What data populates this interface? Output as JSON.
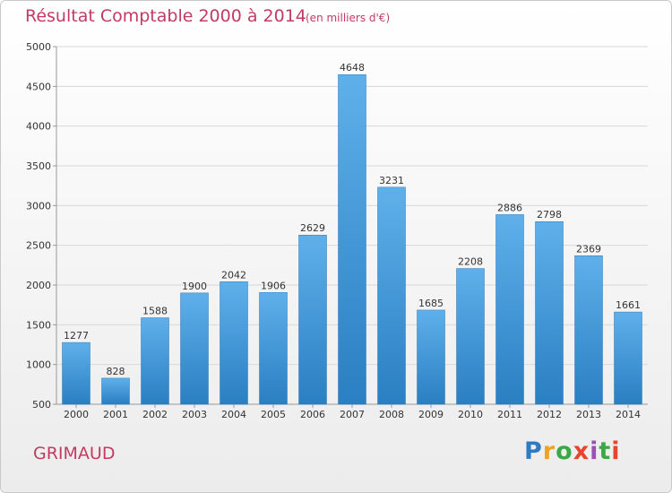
{
  "chart_data": {
    "type": "bar",
    "title": "Résultat Comptable 2000 à 2014",
    "subtitle": "(en milliers d'€)",
    "categories": [
      "2000",
      "2001",
      "2002",
      "2003",
      "2004",
      "2005",
      "2006",
      "2007",
      "2008",
      "2009",
      "2010",
      "2011",
      "2012",
      "2013",
      "2014"
    ],
    "values": [
      1277,
      828,
      1588,
      1900,
      2042,
      1906,
      2629,
      4648,
      3231,
      1685,
      2208,
      2886,
      2798,
      2369,
      1661
    ],
    "ylim": [
      500,
      5000
    ],
    "yticks": [
      500,
      1000,
      1500,
      2000,
      2500,
      3000,
      3500,
      4000,
      4500,
      5000
    ],
    "grid": true,
    "bar_color": "#3f95d6"
  },
  "location": "GRIMAUD",
  "brand": {
    "letters": [
      "P",
      "r",
      "o",
      "x",
      "i",
      "t",
      "i"
    ],
    "colors": [
      "#2e7bc4",
      "#f0a21e",
      "#3aa845",
      "#e8432f",
      "#9c4fb5",
      "#3aa845",
      "#e8432f"
    ]
  }
}
